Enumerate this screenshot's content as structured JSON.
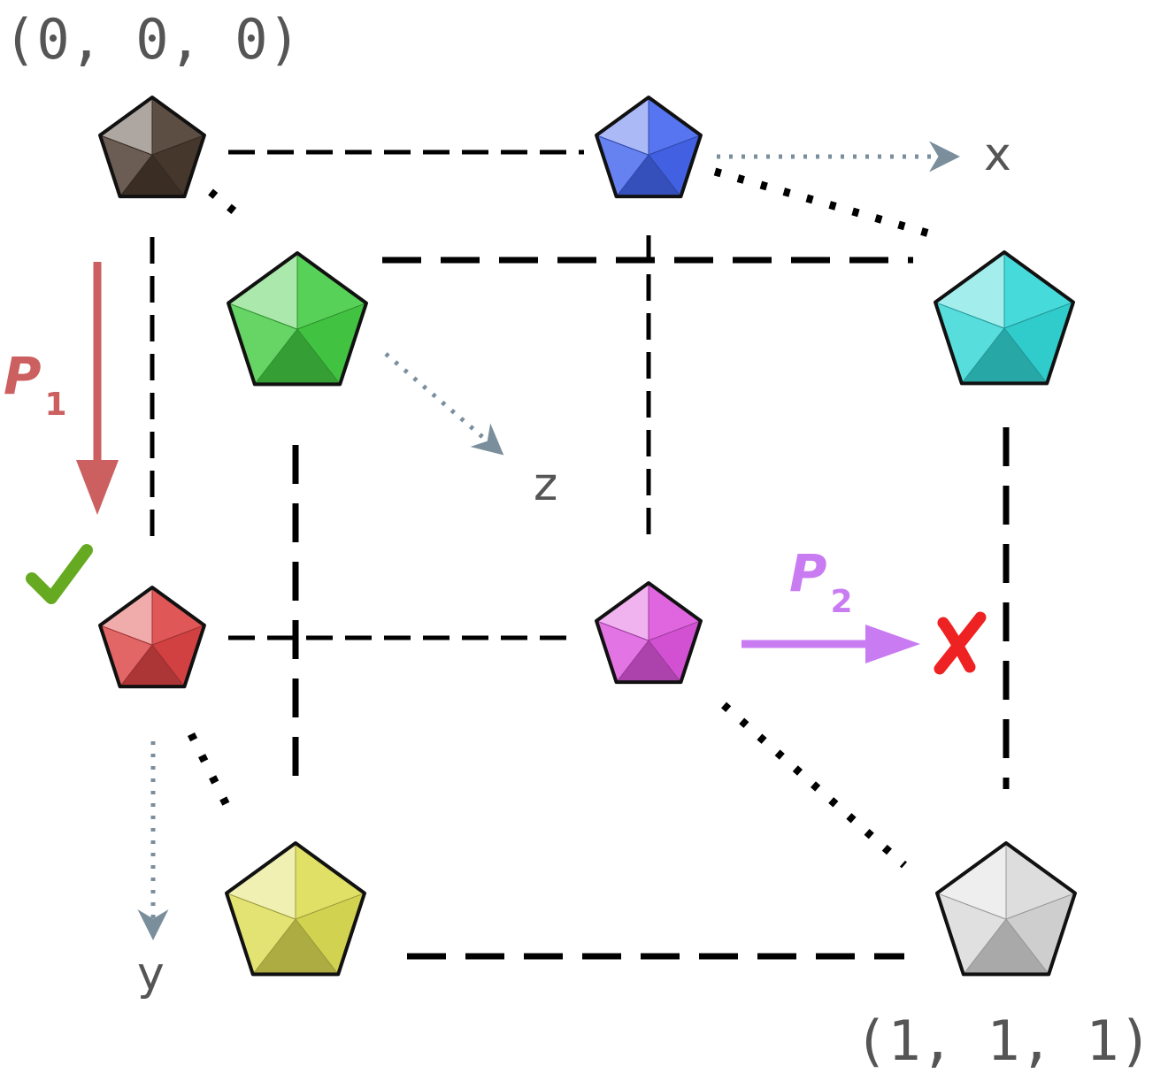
{
  "colors": {
    "edge": "#000000",
    "axis": "#7a8e9c",
    "label": "#555555",
    "path_1": "#cc5f5f",
    "path_2": "#c97cf2",
    "check": "#66aa22",
    "cross": "#ee2222"
  },
  "labels": {
    "origin": "(0, 0, 0)",
    "far_corner": "(1, 1, 1)"
  },
  "axes": {
    "x": "x",
    "y": "y",
    "z": "z"
  },
  "paths": [
    {
      "letter": "P",
      "subscript": "1",
      "result": "check-icon"
    },
    {
      "letter": "P",
      "subscript": "2",
      "result": "cross-icon"
    }
  ],
  "vertices": [
    {
      "coord": [
        0,
        0,
        0
      ],
      "color": "#4a3a2e",
      "icon": "black-pentagon-gem-icon"
    },
    {
      "coord": [
        1,
        0,
        0
      ],
      "color": "#4466ee",
      "icon": "blue-pentagon-gem-icon"
    },
    {
      "coord": [
        0,
        1,
        0
      ],
      "color": "#dd4444",
      "icon": "red-pentagon-gem-icon"
    },
    {
      "coord": [
        1,
        1,
        0
      ],
      "color": "#dd55dd",
      "icon": "magenta-pentagon-gem-icon"
    },
    {
      "coord": [
        0,
        0,
        1
      ],
      "color": "#44cc44",
      "icon": "green-pentagon-gem-icon"
    },
    {
      "coord": [
        1,
        0,
        1
      ],
      "color": "#33d6d6",
      "icon": "cyan-pentagon-gem-icon"
    },
    {
      "coord": [
        0,
        1,
        1
      ],
      "color": "#dddd55",
      "icon": "yellow-pentagon-gem-icon"
    },
    {
      "coord": [
        1,
        1,
        1
      ],
      "color": "#d9d9d9",
      "icon": "white-pentagon-gem-icon"
    }
  ]
}
